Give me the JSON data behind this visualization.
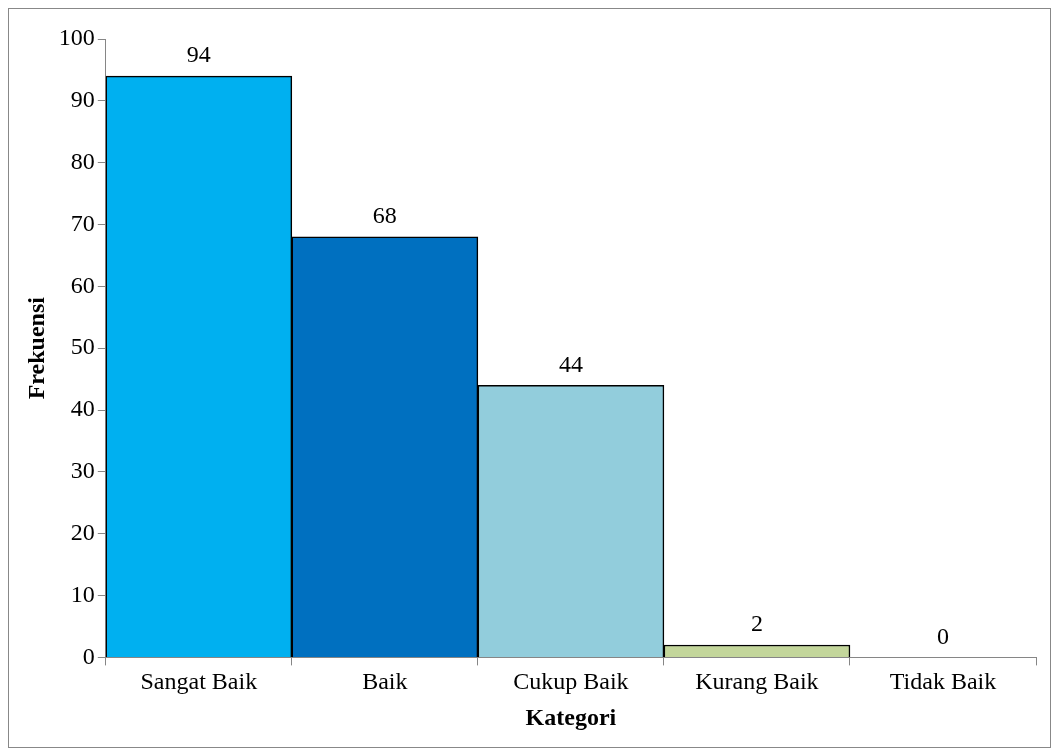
{
  "chart_data": {
    "type": "bar",
    "xlabel": "Kategori",
    "ylabel": "Frekuensi",
    "categories": [
      "Sangat Baik",
      "Baik",
      "Cukup Baik",
      "Kurang Baik",
      "Tidak Baik"
    ],
    "values": [
      94,
      68,
      44,
      2,
      0
    ],
    "colors": [
      "#00b0f0",
      "#0070c0",
      "#92cddc",
      "#c3d69b",
      "#c3d69b"
    ],
    "ylim": [
      0,
      100
    ],
    "yticks": [
      0,
      10,
      20,
      30,
      40,
      50,
      60,
      70,
      80,
      90,
      100
    ],
    "grid": false,
    "legend": false,
    "data_labels": true
  }
}
